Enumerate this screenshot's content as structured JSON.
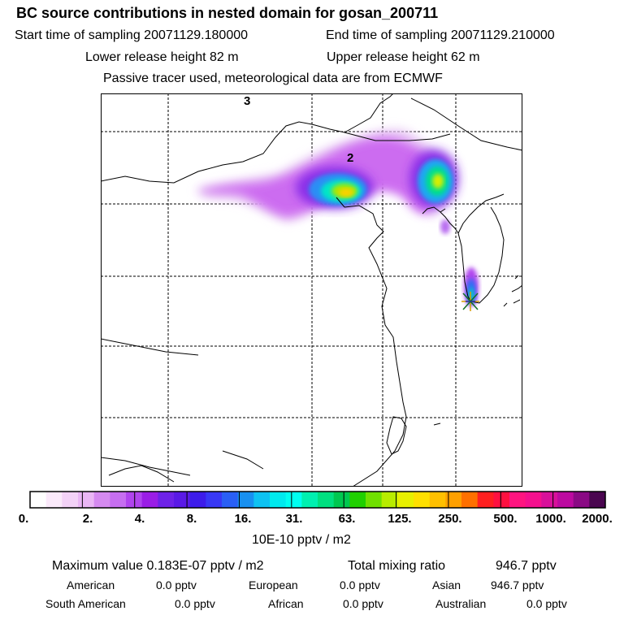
{
  "header": {
    "title": "BC  source contributions in nested domain for gosan_200711",
    "start_label": "Start time of sampling 20071129.180000",
    "end_label": "End time of sampling 20071129.210000",
    "lower_label": "Lower release height   82 m",
    "upper_label": "Upper release height   62 m",
    "note": "Passive tracer used, meteorological data are from ECMWF"
  },
  "map": {
    "contour_labels": [
      "3",
      "2"
    ],
    "receptor": "gosan"
  },
  "colorbar": {
    "unit": "10E-10 pptv / m2",
    "tick_labels": [
      "0.",
      "2.",
      "4.",
      "8.",
      "16.",
      "31.",
      "63.",
      "125.",
      "250.",
      "500.",
      "1000.",
      "2000."
    ],
    "colors": [
      "#ffffff",
      "#fbeafb",
      "#f3d2f7",
      "#eab6f5",
      "#d58af0",
      "#c66ef0",
      "#b044ee",
      "#9a1de6",
      "#6e22e8",
      "#5a19e6",
      "#3d1cea",
      "#3838f5",
      "#2a5ff5",
      "#1890f0",
      "#0ec2f2",
      "#00eaee",
      "#00fff0",
      "#00f0b0",
      "#00e080",
      "#00c850",
      "#20d000",
      "#70e000",
      "#b8ec00",
      "#e8f000",
      "#ffe000",
      "#ffc000",
      "#ffa000",
      "#ff7000",
      "#ff2020",
      "#ff1040",
      "#ff1480",
      "#f4108e",
      "#d8109a",
      "#bc0aa0",
      "#8a0a84",
      "#4a0650"
    ]
  },
  "stats": {
    "max_label": "Maximum value  0.183E-07 pptv / m2",
    "total_label": "Total mixing ratio",
    "total_value": "946.7 pptv",
    "row1": [
      {
        "name": "American",
        "value": "0.0 pptv"
      },
      {
        "name": "European",
        "value": "0.0 pptv"
      },
      {
        "name": "Asian",
        "value": "946.7 pptv"
      }
    ],
    "row2": [
      {
        "name": "South American",
        "value": "0.0 pptv"
      },
      {
        "name": "African",
        "value": "0.0 pptv"
      },
      {
        "name": "Australian",
        "value": "0.0 pptv"
      }
    ]
  }
}
